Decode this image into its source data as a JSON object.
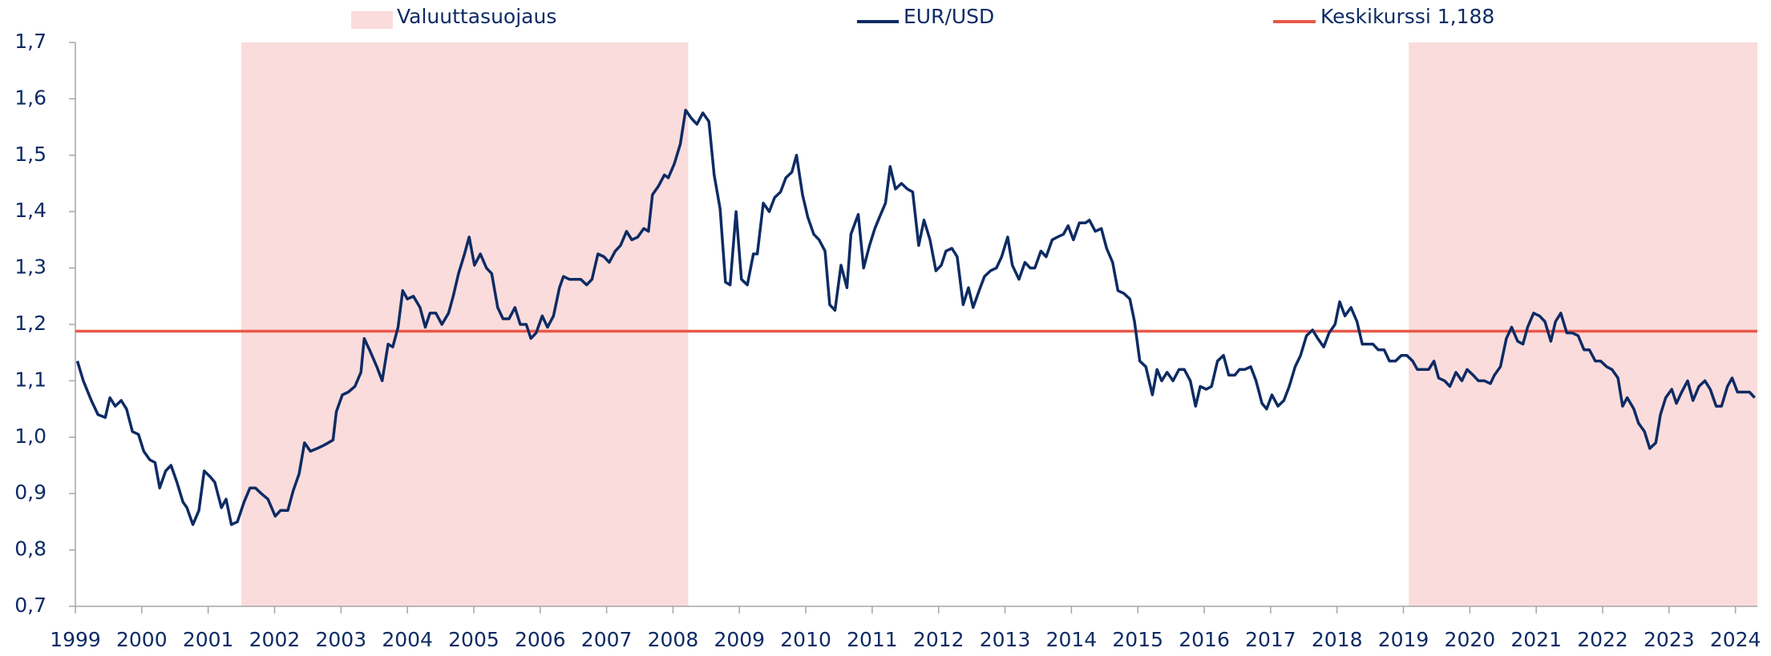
{
  "chart_data": {
    "type": "line",
    "x": [
      1999.03,
      1999.12,
      1999.24,
      1999.34,
      1999.45,
      1999.52,
      1999.6,
      1999.69,
      1999.77,
      1999.86,
      1999.95,
      2000.03,
      2000.12,
      2000.2,
      2000.27,
      2000.36,
      2000.44,
      2000.53,
      2000.62,
      2000.68,
      2000.77,
      2000.86,
      2000.94,
      2001.03,
      2001.1,
      2001.2,
      2001.27,
      2001.35,
      2001.44,
      2001.54,
      2001.63,
      2001.71,
      2001.8,
      2001.9,
      2002.01,
      2002.09,
      2002.2,
      2002.28,
      2002.37,
      2002.45,
      2002.54,
      2002.64,
      2002.73,
      2002.81,
      2002.88,
      2002.93,
      2003.02,
      2003.11,
      2003.21,
      2003.3,
      2003.35,
      2003.43,
      2003.54,
      2003.62,
      2003.71,
      2003.78,
      2003.86,
      2003.93,
      2004.0,
      2004.09,
      2004.19,
      2004.27,
      2004.34,
      2004.43,
      2004.52,
      2004.62,
      2004.69,
      2004.77,
      2004.86,
      2004.93,
      2005.01,
      2005.1,
      2005.19,
      2005.27,
      2005.36,
      2005.44,
      2005.53,
      2005.62,
      2005.7,
      2005.79,
      2005.86,
      2005.94,
      2006.03,
      2006.11,
      2006.2,
      2006.29,
      2006.35,
      2006.44,
      2006.53,
      2006.61,
      2006.7,
      2006.78,
      2006.87,
      2006.96,
      2007.04,
      2007.13,
      2007.21,
      2007.3,
      2007.38,
      2007.47,
      2007.56,
      2007.63,
      2007.69,
      2007.78,
      2007.87,
      2007.93,
      2008.02,
      2008.11,
      2008.19,
      2008.28,
      2008.36,
      2008.45,
      2008.54,
      2008.62,
      2008.71,
      2008.79,
      2008.86,
      2008.95,
      2009.03,
      2009.12,
      2009.21,
      2009.27,
      2009.36,
      2009.45,
      2009.53,
      2009.62,
      2009.7,
      2009.79,
      2009.86,
      2009.95,
      2010.03,
      2010.12,
      2010.2,
      2010.29,
      2010.36,
      2010.44,
      2010.53,
      2010.62,
      2010.68,
      2010.79,
      2010.87,
      2010.96,
      2011.04,
      2011.11,
      2011.2,
      2011.27,
      2011.35,
      2011.44,
      2011.53,
      2011.61,
      2011.7,
      2011.78,
      2011.87,
      2011.96,
      2012.04,
      2012.11,
      2012.2,
      2012.28,
      2012.37,
      2012.45,
      2012.52,
      2012.61,
      2012.69,
      2012.78,
      2012.87,
      2012.95,
      2013.04,
      2013.11,
      2013.21,
      2013.3,
      2013.38,
      2013.45,
      2013.54,
      2013.62,
      2013.71,
      2013.79,
      2013.88,
      2013.95,
      2014.03,
      2014.12,
      2014.21,
      2014.27,
      2014.36,
      2014.45,
      2014.53,
      2014.62,
      2014.7,
      2014.79,
      2014.88,
      2014.95,
      2015.03,
      2015.12,
      2015.22,
      2015.29,
      2015.36,
      2015.44,
      2015.53,
      2015.62,
      2015.7,
      2015.79,
      2015.87,
      2015.94,
      2016.03,
      2016.11,
      2016.2,
      2016.29,
      2016.37,
      2016.46,
      2016.53,
      2016.61,
      2016.7,
      2016.78,
      2016.87,
      2016.94,
      2017.02,
      2017.11,
      2017.2,
      2017.28,
      2017.37,
      2017.45,
      2017.54,
      2017.63,
      2017.71,
      2017.8,
      2017.88,
      2017.97,
      2018.04,
      2018.12,
      2018.21,
      2018.3,
      2018.38,
      2018.47,
      2018.54,
      2018.62,
      2018.71,
      2018.79,
      2018.88,
      2018.97,
      2019.05,
      2019.14,
      2019.21,
      2019.29,
      2019.38,
      2019.46,
      2019.53,
      2019.62,
      2019.7,
      2019.79,
      2019.88,
      2019.96,
      2020.05,
      2020.13,
      2020.22,
      2020.31,
      2020.37,
      2020.46,
      2020.55,
      2020.63,
      2020.72,
      2020.8,
      2020.87,
      2020.96,
      2021.05,
      2021.13,
      2021.22,
      2021.29,
      2021.37,
      2021.46,
      2021.54,
      2021.63,
      2021.72,
      2021.8,
      2021.89,
      2021.97,
      2022.06,
      2022.14,
      2022.23,
      2022.3,
      2022.37,
      2022.47,
      2022.54,
      2022.63,
      2022.71,
      2022.8,
      2022.87,
      2022.95,
      2023.04,
      2023.11,
      2023.19,
      2023.28,
      2023.36,
      2023.45,
      2023.54,
      2023.62,
      2023.71,
      2023.79,
      2023.88,
      2023.95,
      2024.03,
      2024.12,
      2024.21,
      2024.29
    ],
    "series": [
      {
        "name": "EUR/USD",
        "color": "#0d2b64",
        "values": [
          1.135,
          1.1,
          1.065,
          1.04,
          1.035,
          1.07,
          1.055,
          1.065,
          1.05,
          1.01,
          1.005,
          0.975,
          0.96,
          0.955,
          0.91,
          0.94,
          0.95,
          0.92,
          0.885,
          0.875,
          0.845,
          0.87,
          0.94,
          0.93,
          0.92,
          0.875,
          0.89,
          0.845,
          0.85,
          0.885,
          0.91,
          0.91,
          0.9,
          0.89,
          0.86,
          0.87,
          0.87,
          0.905,
          0.935,
          0.99,
          0.975,
          0.98,
          0.985,
          0.99,
          0.995,
          1.045,
          1.075,
          1.08,
          1.09,
          1.115,
          1.175,
          1.155,
          1.125,
          1.1,
          1.165,
          1.16,
          1.195,
          1.26,
          1.245,
          1.25,
          1.23,
          1.195,
          1.22,
          1.22,
          1.2,
          1.22,
          1.25,
          1.29,
          1.325,
          1.355,
          1.305,
          1.325,
          1.3,
          1.29,
          1.23,
          1.21,
          1.21,
          1.23,
          1.2,
          1.2,
          1.175,
          1.185,
          1.215,
          1.195,
          1.215,
          1.265,
          1.285,
          1.28,
          1.28,
          1.28,
          1.27,
          1.28,
          1.325,
          1.32,
          1.31,
          1.33,
          1.34,
          1.365,
          1.35,
          1.355,
          1.37,
          1.365,
          1.43,
          1.445,
          1.465,
          1.46,
          1.485,
          1.52,
          1.58,
          1.565,
          1.555,
          1.575,
          1.56,
          1.465,
          1.405,
          1.275,
          1.27,
          1.4,
          1.28,
          1.27,
          1.325,
          1.325,
          1.415,
          1.4,
          1.425,
          1.435,
          1.46,
          1.47,
          1.5,
          1.43,
          1.39,
          1.36,
          1.35,
          1.33,
          1.235,
          1.225,
          1.305,
          1.265,
          1.36,
          1.395,
          1.3,
          1.34,
          1.37,
          1.39,
          1.415,
          1.48,
          1.44,
          1.45,
          1.44,
          1.435,
          1.34,
          1.385,
          1.35,
          1.295,
          1.305,
          1.33,
          1.335,
          1.32,
          1.235,
          1.265,
          1.23,
          1.26,
          1.285,
          1.295,
          1.3,
          1.32,
          1.355,
          1.305,
          1.28,
          1.31,
          1.3,
          1.3,
          1.33,
          1.32,
          1.35,
          1.355,
          1.36,
          1.375,
          1.35,
          1.38,
          1.38,
          1.385,
          1.365,
          1.37,
          1.335,
          1.31,
          1.26,
          1.255,
          1.245,
          1.205,
          1.135,
          1.125,
          1.075,
          1.12,
          1.1,
          1.115,
          1.1,
          1.12,
          1.12,
          1.1,
          1.055,
          1.09,
          1.085,
          1.09,
          1.135,
          1.145,
          1.11,
          1.11,
          1.12,
          1.12,
          1.125,
          1.1,
          1.06,
          1.05,
          1.075,
          1.055,
          1.065,
          1.09,
          1.125,
          1.145,
          1.18,
          1.19,
          1.175,
          1.16,
          1.185,
          1.2,
          1.24,
          1.215,
          1.23,
          1.205,
          1.165,
          1.165,
          1.165,
          1.155,
          1.155,
          1.135,
          1.135,
          1.145,
          1.145,
          1.135,
          1.12,
          1.12,
          1.12,
          1.135,
          1.105,
          1.1,
          1.09,
          1.115,
          1.1,
          1.12,
          1.11,
          1.1,
          1.1,
          1.095,
          1.11,
          1.125,
          1.175,
          1.195,
          1.17,
          1.165,
          1.195,
          1.22,
          1.215,
          1.205,
          1.17,
          1.205,
          1.22,
          1.185,
          1.185,
          1.18,
          1.155,
          1.155,
          1.135,
          1.135,
          1.125,
          1.12,
          1.105,
          1.055,
          1.07,
          1.05,
          1.025,
          1.01,
          0.98,
          0.99,
          1.04,
          1.07,
          1.085,
          1.06,
          1.08,
          1.1,
          1.065,
          1.09,
          1.1,
          1.085,
          1.055,
          1.055,
          1.09,
          1.105,
          1.08,
          1.08,
          1.08,
          1.07
        ]
      }
    ],
    "shaded": {
      "name": "Valuuttasuojaus",
      "color": "#fadcdc",
      "ranges": [
        [
          2001.5,
          2008.23
        ],
        [
          2019.08,
          2024.33
        ]
      ]
    },
    "reference_line": {
      "name": "Keskikurssi 1,188",
      "value": 1.188,
      "color": "#e8584a"
    },
    "xlim": [
      1999,
      2024.33
    ],
    "xticks": [
      1999,
      2000,
      2001,
      2002,
      2003,
      2004,
      2005,
      2006,
      2007,
      2008,
      2009,
      2010,
      2011,
      2012,
      2013,
      2014,
      2015,
      2016,
      2017,
      2018,
      2019,
      2020,
      2021,
      2022,
      2023,
      2024
    ],
    "ylim": [
      0.7,
      1.7
    ],
    "yticks": [
      {
        "value": 0.7,
        "label": "0,7"
      },
      {
        "value": 0.8,
        "label": "0,8"
      },
      {
        "value": 0.9,
        "label": "0,9"
      },
      {
        "value": 1.0,
        "label": "1,0"
      },
      {
        "value": 1.1,
        "label": "1,1"
      },
      {
        "value": 1.2,
        "label": "1,2"
      },
      {
        "value": 1.3,
        "label": "1,3"
      },
      {
        "value": 1.4,
        "label": "1,4"
      },
      {
        "value": 1.5,
        "label": "1,5"
      },
      {
        "value": 1.6,
        "label": "1,6"
      },
      {
        "value": 1.7,
        "label": "1,7"
      }
    ]
  }
}
